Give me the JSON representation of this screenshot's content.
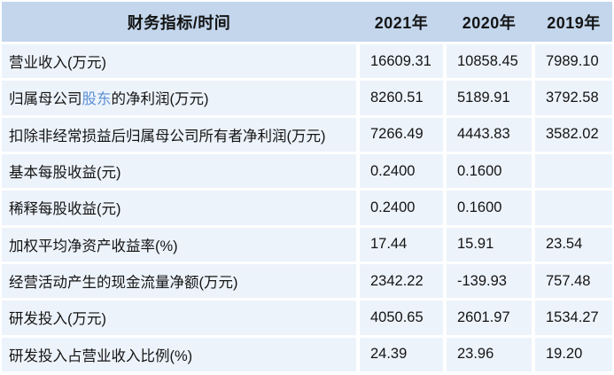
{
  "colors": {
    "page_bg": "#ffffff",
    "header_bg": "#c3d6ec",
    "cell_bg": "#edf3fb",
    "text": "#141414",
    "link": "#5b8fd4"
  },
  "table": {
    "header": {
      "label": "财务指标/时间",
      "years": [
        "2021年",
        "2020年",
        "2019年"
      ]
    },
    "rows": [
      {
        "label_pre": "营业收入(万元)",
        "label_link": "",
        "label_post": "",
        "values": [
          "16609.31",
          "10858.45",
          "7989.10"
        ]
      },
      {
        "label_pre": "归属母公司",
        "label_link": "股东",
        "label_post": "的净利润(万元)",
        "values": [
          "8260.51",
          "5189.91",
          "3792.58"
        ]
      },
      {
        "label_pre": "扣除非经常损益后归属母公司所有者净利润(万元)",
        "label_link": "",
        "label_post": "",
        "values": [
          "7266.49",
          "4443.83",
          "3582.02"
        ]
      },
      {
        "label_pre": "基本每股收益(元)",
        "label_link": "",
        "label_post": "",
        "values": [
          "0.2400",
          "0.1600",
          ""
        ]
      },
      {
        "label_pre": "稀释每股收益(元)",
        "label_link": "",
        "label_post": "",
        "values": [
          "0.2400",
          "0.1600",
          ""
        ]
      },
      {
        "label_pre": "加权平均净资产收益率(%)",
        "label_link": "",
        "label_post": "",
        "values": [
          "17.44",
          "15.91",
          "23.54"
        ]
      },
      {
        "label_pre": "经营活动产生的现金流量净额(万元)",
        "label_link": "",
        "label_post": "",
        "values": [
          "2342.22",
          "-139.93",
          "757.48"
        ]
      },
      {
        "label_pre": "研发投入(万元)",
        "label_link": "",
        "label_post": "",
        "values": [
          "4050.65",
          "2601.97",
          "1534.27"
        ]
      },
      {
        "label_pre": "研发投入占营业收入比例(%)",
        "label_link": "",
        "label_post": "",
        "values": [
          "24.39",
          "23.96",
          "19.20"
        ]
      }
    ]
  },
  "chart_data": {
    "type": "table",
    "title": "财务指标/时间",
    "columns": [
      "财务指标/时间",
      "2021年",
      "2020年",
      "2019年"
    ],
    "rows": [
      [
        "营业收入(万元)",
        16609.31,
        10858.45,
        7989.1
      ],
      [
        "归属母公司股东的净利润(万元)",
        8260.51,
        5189.91,
        3792.58
      ],
      [
        "扣除非经常损益后归属母公司所有者净利润(万元)",
        7266.49,
        4443.83,
        3582.02
      ],
      [
        "基本每股收益(元)",
        0.24,
        0.16,
        null
      ],
      [
        "稀释每股收益(元)",
        0.24,
        0.16,
        null
      ],
      [
        "加权平均净资产收益率(%)",
        17.44,
        15.91,
        23.54
      ],
      [
        "经营活动产生的现金流量净额(万元)",
        2342.22,
        -139.93,
        757.48
      ],
      [
        "研发投入(万元)",
        4050.65,
        2601.97,
        1534.27
      ],
      [
        "研发投入占营业收入比例(%)",
        24.39,
        23.96,
        19.2
      ]
    ]
  }
}
